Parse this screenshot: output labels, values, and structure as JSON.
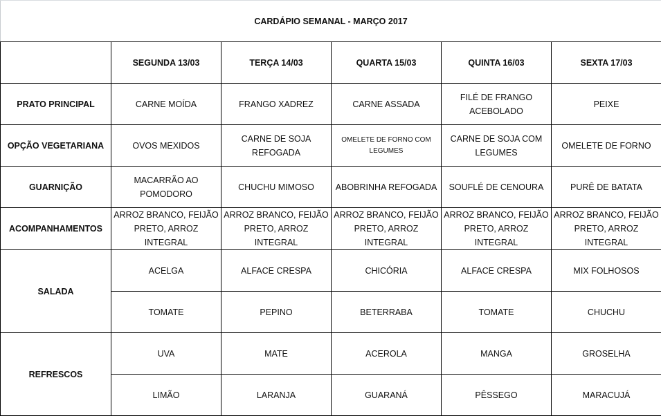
{
  "title": "CARDÁPIO SEMANAL - MARÇO 2017",
  "days": [
    "SEGUNDA 13/03",
    "TERÇA 14/03",
    "QUARTA 15/03",
    "QUINTA  16/03",
    "SEXTA 17/03"
  ],
  "sections": [
    {
      "label": "PRATO PRINCIPAL",
      "rows": [
        [
          "CARNE MOÍDA",
          "FRANGO XADREZ",
          "CARNE ASSADA",
          "FILÉ DE FRANGO ACEBOLADO",
          "PEIXE"
        ]
      ]
    },
    {
      "label": "OPÇÃO VEGETARIANA",
      "rows": [
        [
          "OVOS MEXIDOS",
          "CARNE DE SOJA REFOGADA",
          "OMELETE DE FORNO COM LEGUMES",
          "CARNE DE SOJA COM LEGUMES",
          "OMELETE DE FORNO"
        ]
      ]
    },
    {
      "label": "GUARNIÇÃO",
      "rows": [
        [
          "MACARRÃO AO POMODORO",
          "CHUCHU MIMOSO",
          "ABOBRINHA REFOGADA",
          "SOUFLÉ DE CENOURA",
          "PURÊ DE BATATA"
        ]
      ]
    },
    {
      "label": "ACOMPANHAMENTOS",
      "rows": [
        [
          "ARROZ BRANCO, FEIJÃO PRETO, ARROZ INTEGRAL",
          "ARROZ BRANCO, FEIJÃO PRETO, ARROZ INTEGRAL",
          "ARROZ BRANCO, FEIJÃO PRETO, ARROZ INTEGRAL",
          "ARROZ BRANCO, FEIJÃO PRETO, ARROZ INTEGRAL",
          "ARROZ BRANCO, FEIJÃO PRETO, ARROZ INTEGRAL"
        ]
      ]
    },
    {
      "label": "SALADA",
      "rows": [
        [
          "ACELGA",
          "ALFACE CRESPA",
          "CHICÓRIA",
          "ALFACE CRESPA",
          "MIX FOLHOSOS"
        ],
        [
          "TOMATE",
          "PEPINO",
          "BETERRABA",
          "TOMATE",
          "CHUCHU"
        ]
      ]
    },
    {
      "label": "REFRESCOS",
      "rows": [
        [
          "UVA",
          "MATE",
          "ACEROLA",
          "MANGA",
          "GROSELHA"
        ],
        [
          "LIMÃO",
          "LARANJA",
          "GUARANÁ",
          "PÊSSEGO",
          "MARACUJÁ"
        ]
      ]
    }
  ]
}
